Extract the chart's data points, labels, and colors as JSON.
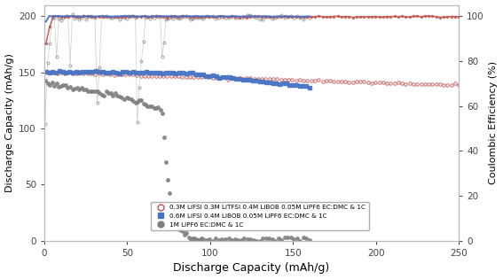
{
  "xlabel": "Discharge Capacity (mAh/g)",
  "ylabel_left": "Discharge Capacity (mAh/g)",
  "ylabel_right": "Coulombic Efficiency (%)",
  "xlim": [
    0,
    250
  ],
  "ylim_left": [
    0,
    210
  ],
  "ylim_right": [
    0,
    105
  ],
  "yticks_left": [
    0,
    50,
    100,
    150,
    200
  ],
  "yticks_right": [
    0,
    20,
    40,
    60,
    80,
    100
  ],
  "xticks": [
    0,
    50,
    100,
    150,
    200,
    250
  ],
  "legend_labels": [
    "0.3M LiFSI 0.3M LiTFSI 0.4M LiBOB 0.05M LiPF6 EC:DMC & 1C",
    "0.6M LiFSI 0.4M LiBOB 0.05M LiPF6 EC:DMC & 1C",
    "1M LiPF6 EC:DMC & 1C"
  ],
  "series_colors": [
    "#c0504d",
    "#4472c4",
    "#7f7f7f"
  ],
  "background_color": "#ffffff"
}
